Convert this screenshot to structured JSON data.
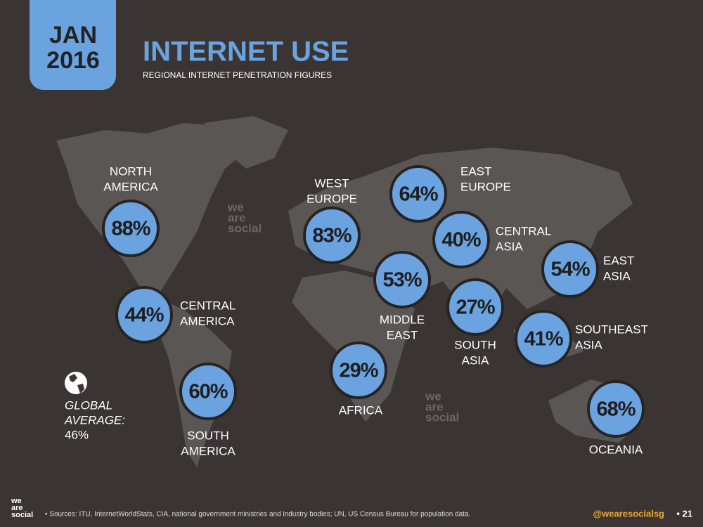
{
  "header": {
    "date_lines": [
      "JAN",
      "2016"
    ],
    "title": "INTERNET USE",
    "subtitle": "REGIONAL INTERNET PENETRATION FIGURES"
  },
  "regions": [
    {
      "label": [
        "NORTH",
        "AMERICA"
      ],
      "value": "88%"
    },
    {
      "label": [
        "CENTRAL",
        "AMERICA"
      ],
      "value": "44%"
    },
    {
      "label": [
        "SOUTH",
        "AMERICA"
      ],
      "value": "60%"
    },
    {
      "label": [
        "WEST",
        "EUROPE"
      ],
      "value": "83%"
    },
    {
      "label": [
        "AFRICA"
      ],
      "value": "29%"
    },
    {
      "label": [
        "MIDDLE",
        "EAST"
      ],
      "value": "53%"
    },
    {
      "label": [
        "EAST",
        "EUROPE"
      ],
      "value": "64%"
    },
    {
      "label": [
        "CENTRAL",
        "ASIA"
      ],
      "value": "40%"
    },
    {
      "label": [
        "SOUTH",
        "ASIA"
      ],
      "value": "27%"
    },
    {
      "label": [
        "EAST",
        "ASIA"
      ],
      "value": "54%"
    },
    {
      "label": [
        "SOUTHEAST",
        "ASIA"
      ],
      "value": "41%"
    },
    {
      "label": [
        "OCEANIA"
      ],
      "value": "68%"
    }
  ],
  "global": {
    "lines": [
      "GLOBAL",
      "AVERAGE:",
      "46%"
    ]
  },
  "watermark": [
    "we",
    "are",
    "social"
  ],
  "footer": {
    "logo": [
      "we",
      "are",
      "social"
    ],
    "sources": "• Sources: ITU, InternetWorldStats, CIA, national government ministries and industry bodies; UN, US Census Bureau for population data.",
    "handle": "@wearesocialsg",
    "page": "• 21"
  }
}
